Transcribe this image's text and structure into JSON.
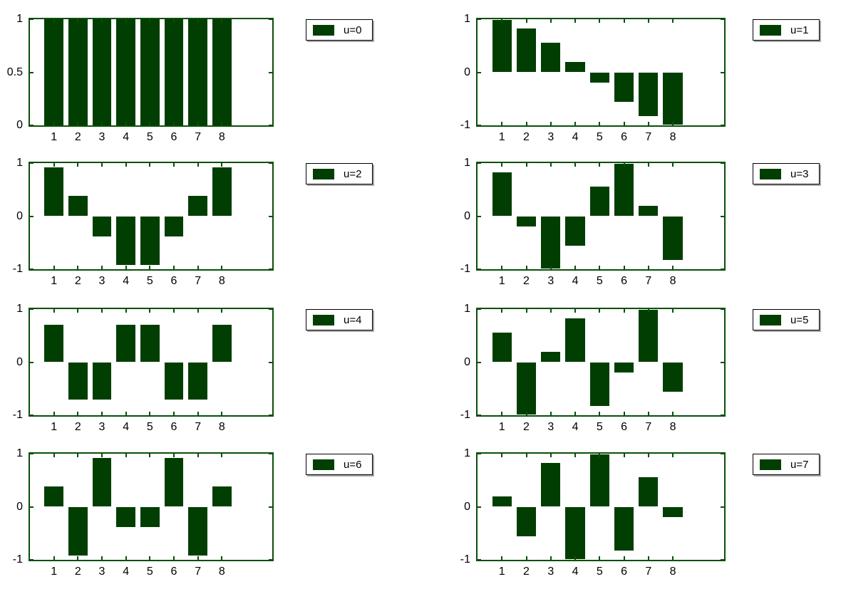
{
  "figure_title": "",
  "colors": {
    "bar_fill": "#013e01",
    "axis_frame": "#0a4f0a",
    "tick_text": "#000000",
    "legend_text": "#000000",
    "legend_border": "#000000",
    "legend_background": "#ffffff",
    "background": "#ffffff"
  },
  "chart_data": [
    {
      "type": "bar",
      "legend": "u=0",
      "legend_position": "outside-upper-right",
      "categories": [
        "1",
        "2",
        "3",
        "4",
        "5",
        "6",
        "7",
        "8"
      ],
      "values": [
        1,
        1,
        1,
        1,
        1,
        1,
        1,
        1
      ],
      "xlim": [
        0,
        10.1
      ],
      "ylim": [
        0,
        1
      ],
      "yticks": [
        {
          "v": 1,
          "label": "1"
        },
        {
          "v": 0.5,
          "label": "0.5"
        },
        {
          "v": 0,
          "label": "0"
        }
      ],
      "grid": false
    },
    {
      "type": "bar",
      "legend": "u=1",
      "legend_position": "outside-upper-right",
      "categories": [
        "1",
        "2",
        "3",
        "4",
        "5",
        "6",
        "7",
        "8"
      ],
      "values": [
        0.981,
        0.831,
        0.556,
        0.195,
        -0.195,
        -0.556,
        -0.831,
        -0.981
      ],
      "xlim": [
        0,
        10.1
      ],
      "ylim": [
        -1,
        1
      ],
      "yticks": [
        {
          "v": 1,
          "label": "1"
        },
        {
          "v": 0,
          "label": "0"
        },
        {
          "v": -1,
          "label": "-1"
        }
      ],
      "grid": false
    },
    {
      "type": "bar",
      "legend": "u=2",
      "legend_position": "outside-upper-right",
      "categories": [
        "1",
        "2",
        "3",
        "4",
        "5",
        "6",
        "7",
        "8"
      ],
      "values": [
        0.924,
        0.383,
        -0.383,
        -0.924,
        -0.924,
        -0.383,
        0.383,
        0.924
      ],
      "xlim": [
        0,
        10.1
      ],
      "ylim": [
        -1,
        1
      ],
      "yticks": [
        {
          "v": 1,
          "label": "1"
        },
        {
          "v": 0,
          "label": "0"
        },
        {
          "v": -1,
          "label": "-1"
        }
      ],
      "grid": false
    },
    {
      "type": "bar",
      "legend": "u=3",
      "legend_position": "outside-upper-right",
      "categories": [
        "1",
        "2",
        "3",
        "4",
        "5",
        "6",
        "7",
        "8"
      ],
      "values": [
        0.831,
        -0.195,
        -0.981,
        -0.556,
        0.556,
        0.981,
        0.195,
        -0.831
      ],
      "xlim": [
        0,
        10.1
      ],
      "ylim": [
        -1,
        1
      ],
      "yticks": [
        {
          "v": 1,
          "label": "1"
        },
        {
          "v": 0,
          "label": "0"
        },
        {
          "v": -1,
          "label": "-1"
        }
      ],
      "grid": false
    },
    {
      "type": "bar",
      "legend": "u=4",
      "legend_position": "outside-upper-right",
      "categories": [
        "1",
        "2",
        "3",
        "4",
        "5",
        "6",
        "7",
        "8"
      ],
      "values": [
        0.707,
        -0.707,
        -0.707,
        0.707,
        0.707,
        -0.707,
        -0.707,
        0.707
      ],
      "xlim": [
        0,
        10.1
      ],
      "ylim": [
        -1,
        1
      ],
      "yticks": [
        {
          "v": 1,
          "label": "1"
        },
        {
          "v": 0,
          "label": "0"
        },
        {
          "v": -1,
          "label": "-1"
        }
      ],
      "grid": false
    },
    {
      "type": "bar",
      "legend": "u=5",
      "legend_position": "outside-upper-right",
      "categories": [
        "1",
        "2",
        "3",
        "4",
        "5",
        "6",
        "7",
        "8"
      ],
      "values": [
        0.556,
        -0.981,
        0.195,
        0.831,
        -0.831,
        -0.195,
        0.981,
        -0.556
      ],
      "xlim": [
        0,
        10.1
      ],
      "ylim": [
        -1,
        1
      ],
      "yticks": [
        {
          "v": 1,
          "label": "1"
        },
        {
          "v": 0,
          "label": "0"
        },
        {
          "v": -1,
          "label": "-1"
        }
      ],
      "grid": false
    },
    {
      "type": "bar",
      "legend": "u=6",
      "legend_position": "outside-upper-right",
      "categories": [
        "1",
        "2",
        "3",
        "4",
        "5",
        "6",
        "7",
        "8"
      ],
      "values": [
        0.383,
        -0.924,
        0.924,
        -0.383,
        -0.383,
        0.924,
        -0.924,
        0.383
      ],
      "xlim": [
        0,
        10.1
      ],
      "ylim": [
        -1,
        1
      ],
      "yticks": [
        {
          "v": 1,
          "label": "1"
        },
        {
          "v": 0,
          "label": "0"
        },
        {
          "v": -1,
          "label": "-1"
        }
      ],
      "grid": false
    },
    {
      "type": "bar",
      "legend": "u=7",
      "legend_position": "outside-upper-right",
      "categories": [
        "1",
        "2",
        "3",
        "4",
        "5",
        "6",
        "7",
        "8"
      ],
      "values": [
        0.195,
        -0.556,
        0.831,
        -0.981,
        0.981,
        -0.831,
        0.556,
        -0.195
      ],
      "xlim": [
        0,
        10.1
      ],
      "ylim": [
        -1,
        1
      ],
      "yticks": [
        {
          "v": 1,
          "label": "1"
        },
        {
          "v": 0,
          "label": "0"
        },
        {
          "v": -1,
          "label": "-1"
        }
      ],
      "grid": false
    }
  ]
}
